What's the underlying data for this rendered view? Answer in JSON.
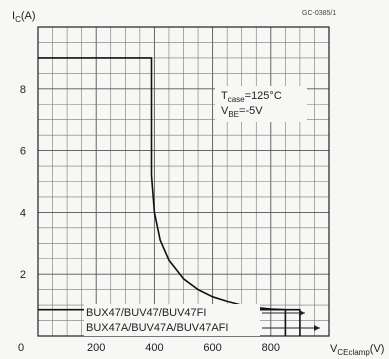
{
  "chart_data": {
    "type": "line",
    "figure_code": "GC-0385/1",
    "ylabel": {
      "main": "I",
      "sub": "C",
      "unit": "(A)"
    },
    "xlabel": {
      "main": "V",
      "sub": "CEclamp",
      "unit": "(V)"
    },
    "xlim": [
      0,
      1000
    ],
    "ylim": [
      0,
      10
    ],
    "x_ticks": [
      "200",
      "400",
      "600",
      "800"
    ],
    "y_ticks": [
      "2",
      "4",
      "6",
      "8"
    ],
    "origin_label": "0",
    "grid": true,
    "conditions": {
      "tcase": {
        "main": "T",
        "sub": "case",
        "rest": "=125°C"
      },
      "vbe": {
        "main": "V",
        "sub": "BE",
        "rest": "=-5V"
      }
    },
    "series": [
      {
        "x": [
          0,
          390,
          390,
          400,
          420,
          450,
          500,
          550,
          600,
          650,
          700,
          750,
          800,
          850,
          850
        ],
        "y": [
          9.0,
          9.0,
          5.2,
          4.0,
          3.1,
          2.45,
          1.85,
          1.5,
          1.27,
          1.12,
          1.0,
          0.92,
          0.87,
          0.85,
          0
        ],
        "dash": false
      },
      {
        "x": [
          0,
          900,
          900
        ],
        "y": [
          0.85,
          0.85,
          0
        ],
        "dash": false
      }
    ],
    "legend": [
      "BUX47/BUV47/BUV47FI",
      "BUX47A/BUV47A/BUV47AFI"
    ]
  }
}
